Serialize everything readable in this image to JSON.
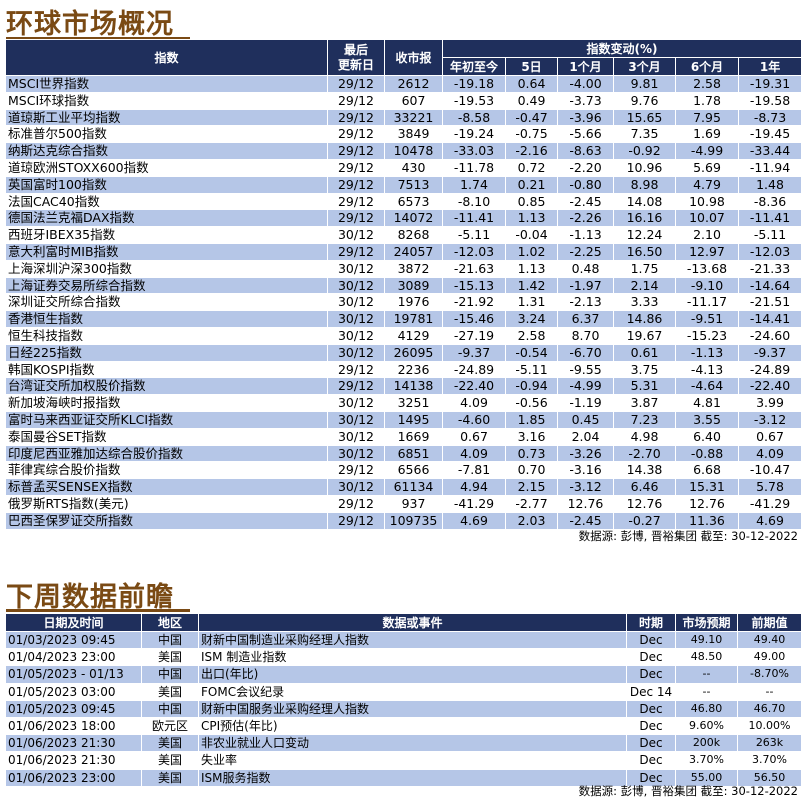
{
  "global": {
    "title": "环球市场概况",
    "headers": {
      "index": "指数",
      "last_update": "最后\n更新日",
      "close": "收市报",
      "change_group": "指数变动(%)",
      "ytd": "年初至今",
      "d5": "5日",
      "m1": "1个月",
      "m3": "3个月",
      "m6": "6个月",
      "y1": "1年"
    },
    "rows": [
      {
        "name": "MSCI世界指数",
        "date": "29/12",
        "close": "2612",
        "ytd": "-19.18",
        "d5": "0.64",
        "m1": "-4.00",
        "m3": "9.81",
        "m6": "2.58",
        "y1": "-19.31"
      },
      {
        "name": "MSCI环球指数",
        "date": "29/12",
        "close": "607",
        "ytd": "-19.53",
        "d5": "0.49",
        "m1": "-3.73",
        "m3": "9.76",
        "m6": "1.78",
        "y1": "-19.58"
      },
      {
        "name": "道琼斯工业平均指数",
        "date": "29/12",
        "close": "33221",
        "ytd": "-8.58",
        "d5": "-0.47",
        "m1": "-3.96",
        "m3": "15.65",
        "m6": "7.95",
        "y1": "-8.73"
      },
      {
        "name": "标准普尔500指数",
        "date": "29/12",
        "close": "3849",
        "ytd": "-19.24",
        "d5": "-0.75",
        "m1": "-5.66",
        "m3": "7.35",
        "m6": "1.69",
        "y1": "-19.45"
      },
      {
        "name": "纳斯达克综合指数",
        "date": "29/12",
        "close": "10478",
        "ytd": "-33.03",
        "d5": "-2.16",
        "m1": "-8.63",
        "m3": "-0.92",
        "m6": "-4.99",
        "y1": "-33.44"
      },
      {
        "name": "道琼欧洲STOXX600指数",
        "date": "29/12",
        "close": "430",
        "ytd": "-11.78",
        "d5": "0.72",
        "m1": "-2.20",
        "m3": "10.96",
        "m6": "5.69",
        "y1": "-11.94"
      },
      {
        "name": "英国富时100指数",
        "date": "29/12",
        "close": "7513",
        "ytd": "1.74",
        "d5": "0.21",
        "m1": "-0.80",
        "m3": "8.98",
        "m6": "4.79",
        "y1": "1.48"
      },
      {
        "name": "法国CAC40指数",
        "date": "29/12",
        "close": "6573",
        "ytd": "-8.10",
        "d5": "0.85",
        "m1": "-2.45",
        "m3": "14.08",
        "m6": "10.98",
        "y1": "-8.36"
      },
      {
        "name": "德国法兰克福DAX指数",
        "date": "29/12",
        "close": "14072",
        "ytd": "-11.41",
        "d5": "1.13",
        "m1": "-2.26",
        "m3": "16.16",
        "m6": "10.07",
        "y1": "-11.41"
      },
      {
        "name": "西班牙IBEX35指数",
        "date": "30/12",
        "close": "8268",
        "ytd": "-5.11",
        "d5": "-0.04",
        "m1": "-1.13",
        "m3": "12.24",
        "m6": "2.10",
        "y1": "-5.11"
      },
      {
        "name": "意大利富时MIB指数",
        "date": "29/12",
        "close": "24057",
        "ytd": "-12.03",
        "d5": "1.02",
        "m1": "-2.25",
        "m3": "16.50",
        "m6": "12.97",
        "y1": "-12.03"
      },
      {
        "name": "上海深圳沪深300指数",
        "date": "30/12",
        "close": "3872",
        "ytd": "-21.63",
        "d5": "1.13",
        "m1": "0.48",
        "m3": "1.75",
        "m6": "-13.68",
        "y1": "-21.33"
      },
      {
        "name": "上海证券交易所综合指数",
        "date": "30/12",
        "close": "3089",
        "ytd": "-15.13",
        "d5": "1.42",
        "m1": "-1.97",
        "m3": "2.14",
        "m6": "-9.10",
        "y1": "-14.64"
      },
      {
        "name": "深圳证交所综合指数",
        "date": "30/12",
        "close": "1976",
        "ytd": "-21.92",
        "d5": "1.31",
        "m1": "-2.13",
        "m3": "3.33",
        "m6": "-11.17",
        "y1": "-21.51"
      },
      {
        "name": "香港恒生指数",
        "date": "30/12",
        "close": "19781",
        "ytd": "-15.46",
        "d5": "3.24",
        "m1": "6.37",
        "m3": "14.86",
        "m6": "-9.51",
        "y1": "-14.41"
      },
      {
        "name": "恒生科技指数",
        "date": "30/12",
        "close": "4129",
        "ytd": "-27.19",
        "d5": "2.58",
        "m1": "8.70",
        "m3": "19.67",
        "m6": "-15.23",
        "y1": "-24.60"
      },
      {
        "name": "日经225指数",
        "date": "30/12",
        "close": "26095",
        "ytd": "-9.37",
        "d5": "-0.54",
        "m1": "-6.70",
        "m3": "0.61",
        "m6": "-1.13",
        "y1": "-9.37"
      },
      {
        "name": "韩国KOSPI指数",
        "date": "29/12",
        "close": "2236",
        "ytd": "-24.89",
        "d5": "-5.11",
        "m1": "-9.55",
        "m3": "3.75",
        "m6": "-4.13",
        "y1": "-24.89"
      },
      {
        "name": "台湾证交所加权股价指数",
        "date": "29/12",
        "close": "14138",
        "ytd": "-22.40",
        "d5": "-0.94",
        "m1": "-4.99",
        "m3": "5.31",
        "m6": "-4.64",
        "y1": "-22.40"
      },
      {
        "name": "新加坡海峡时报指数",
        "date": "30/12",
        "close": "3251",
        "ytd": "4.09",
        "d5": "-0.56",
        "m1": "-1.19",
        "m3": "3.87",
        "m6": "4.81",
        "y1": "3.99"
      },
      {
        "name": "富时马来西亚证交所KLCI指数",
        "date": "30/12",
        "close": "1495",
        "ytd": "-4.60",
        "d5": "1.85",
        "m1": "0.45",
        "m3": "7.23",
        "m6": "3.55",
        "y1": "-3.12"
      },
      {
        "name": "泰国曼谷SET指数",
        "date": "30/12",
        "close": "1669",
        "ytd": "0.67",
        "d5": "3.16",
        "m1": "2.04",
        "m3": "4.98",
        "m6": "6.40",
        "y1": "0.67"
      },
      {
        "name": "印度尼西亚雅加达综合股价指数",
        "date": "30/12",
        "close": "6851",
        "ytd": "4.09",
        "d5": "0.73",
        "m1": "-3.26",
        "m3": "-2.70",
        "m6": "-0.88",
        "y1": "4.09"
      },
      {
        "name": "菲律宾综合股价指数",
        "date": "29/12",
        "close": "6566",
        "ytd": "-7.81",
        "d5": "0.70",
        "m1": "-3.16",
        "m3": "14.38",
        "m6": "6.68",
        "y1": "-10.47"
      },
      {
        "name": "标普孟买SENSEX指数",
        "date": "30/12",
        "close": "61134",
        "ytd": "4.94",
        "d5": "2.15",
        "m1": "-3.12",
        "m3": "6.46",
        "m6": "15.31",
        "y1": "5.78"
      },
      {
        "name": "俄罗斯RTS指数(美元)",
        "date": "29/12",
        "close": "937",
        "ytd": "-41.29",
        "d5": "-2.77",
        "m1": "12.76",
        "m3": "12.76",
        "m6": "12.76",
        "y1": "-41.29"
      },
      {
        "name": "巴西圣保罗证交所指数",
        "date": "29/12",
        "close": "109735",
        "ytd": "4.69",
        "d5": "2.03",
        "m1": "-2.45",
        "m3": "-0.27",
        "m6": "11.36",
        "y1": "4.69"
      }
    ],
    "source": "数据源: 彭博, 晋裕集团 截至: 30-12-2022"
  },
  "calendar": {
    "title": "下周数据前瞻",
    "headers": {
      "datetime": "日期及时间",
      "region": "地区",
      "event": "数据或事件",
      "period": "时期",
      "expected": "市场预期",
      "previous": "前期值"
    },
    "rows": [
      {
        "dt": "01/03/2023 09:45",
        "region": "中国",
        "event": "财新中国制造业采购经理人指数",
        "period": "Dec",
        "exp": "49.10",
        "prev": "49.40"
      },
      {
        "dt": "01/04/2023 23:00",
        "region": "美国",
        "event": "ISM 制造业指数",
        "period": "Dec",
        "exp": "48.50",
        "prev": "49.00"
      },
      {
        "dt": "01/05/2023 - 01/13",
        "region": "中国",
        "event": "出口(年比)",
        "period": "Dec",
        "exp": "--",
        "prev": "-8.70%"
      },
      {
        "dt": "01/05/2023 03:00",
        "region": "美国",
        "event": "FOMC会议纪录",
        "period": "Dec 14",
        "exp": "--",
        "prev": "--"
      },
      {
        "dt": "01/05/2023 09:45",
        "region": "中国",
        "event": "财新中国服务业采购经理人指数",
        "period": "Dec",
        "exp": "46.80",
        "prev": "46.70"
      },
      {
        "dt": "01/06/2023 18:00",
        "region": "欧元区",
        "event": "CPI预估(年比)",
        "period": "Dec",
        "exp": "9.60%",
        "prev": "10.00%"
      },
      {
        "dt": "01/06/2023 21:30",
        "region": "美国",
        "event": "非农业就业人口变动",
        "period": "Dec",
        "exp": "200k",
        "prev": "263k"
      },
      {
        "dt": "01/06/2023 21:30",
        "region": "美国",
        "event": "失业率",
        "period": "Dec",
        "exp": "3.70%",
        "prev": "3.70%"
      },
      {
        "dt": "01/06/2023 23:00",
        "region": "美国",
        "event": "ISM服务指数",
        "period": "Dec",
        "exp": "55.00",
        "prev": "56.50"
      }
    ],
    "source": "数据源: 彭博, 晋裕集团 截至: 30-12-2022"
  },
  "colors": {
    "title": "#7a4a14",
    "header": "#1f2f5c",
    "band": "#b5c6e7"
  }
}
